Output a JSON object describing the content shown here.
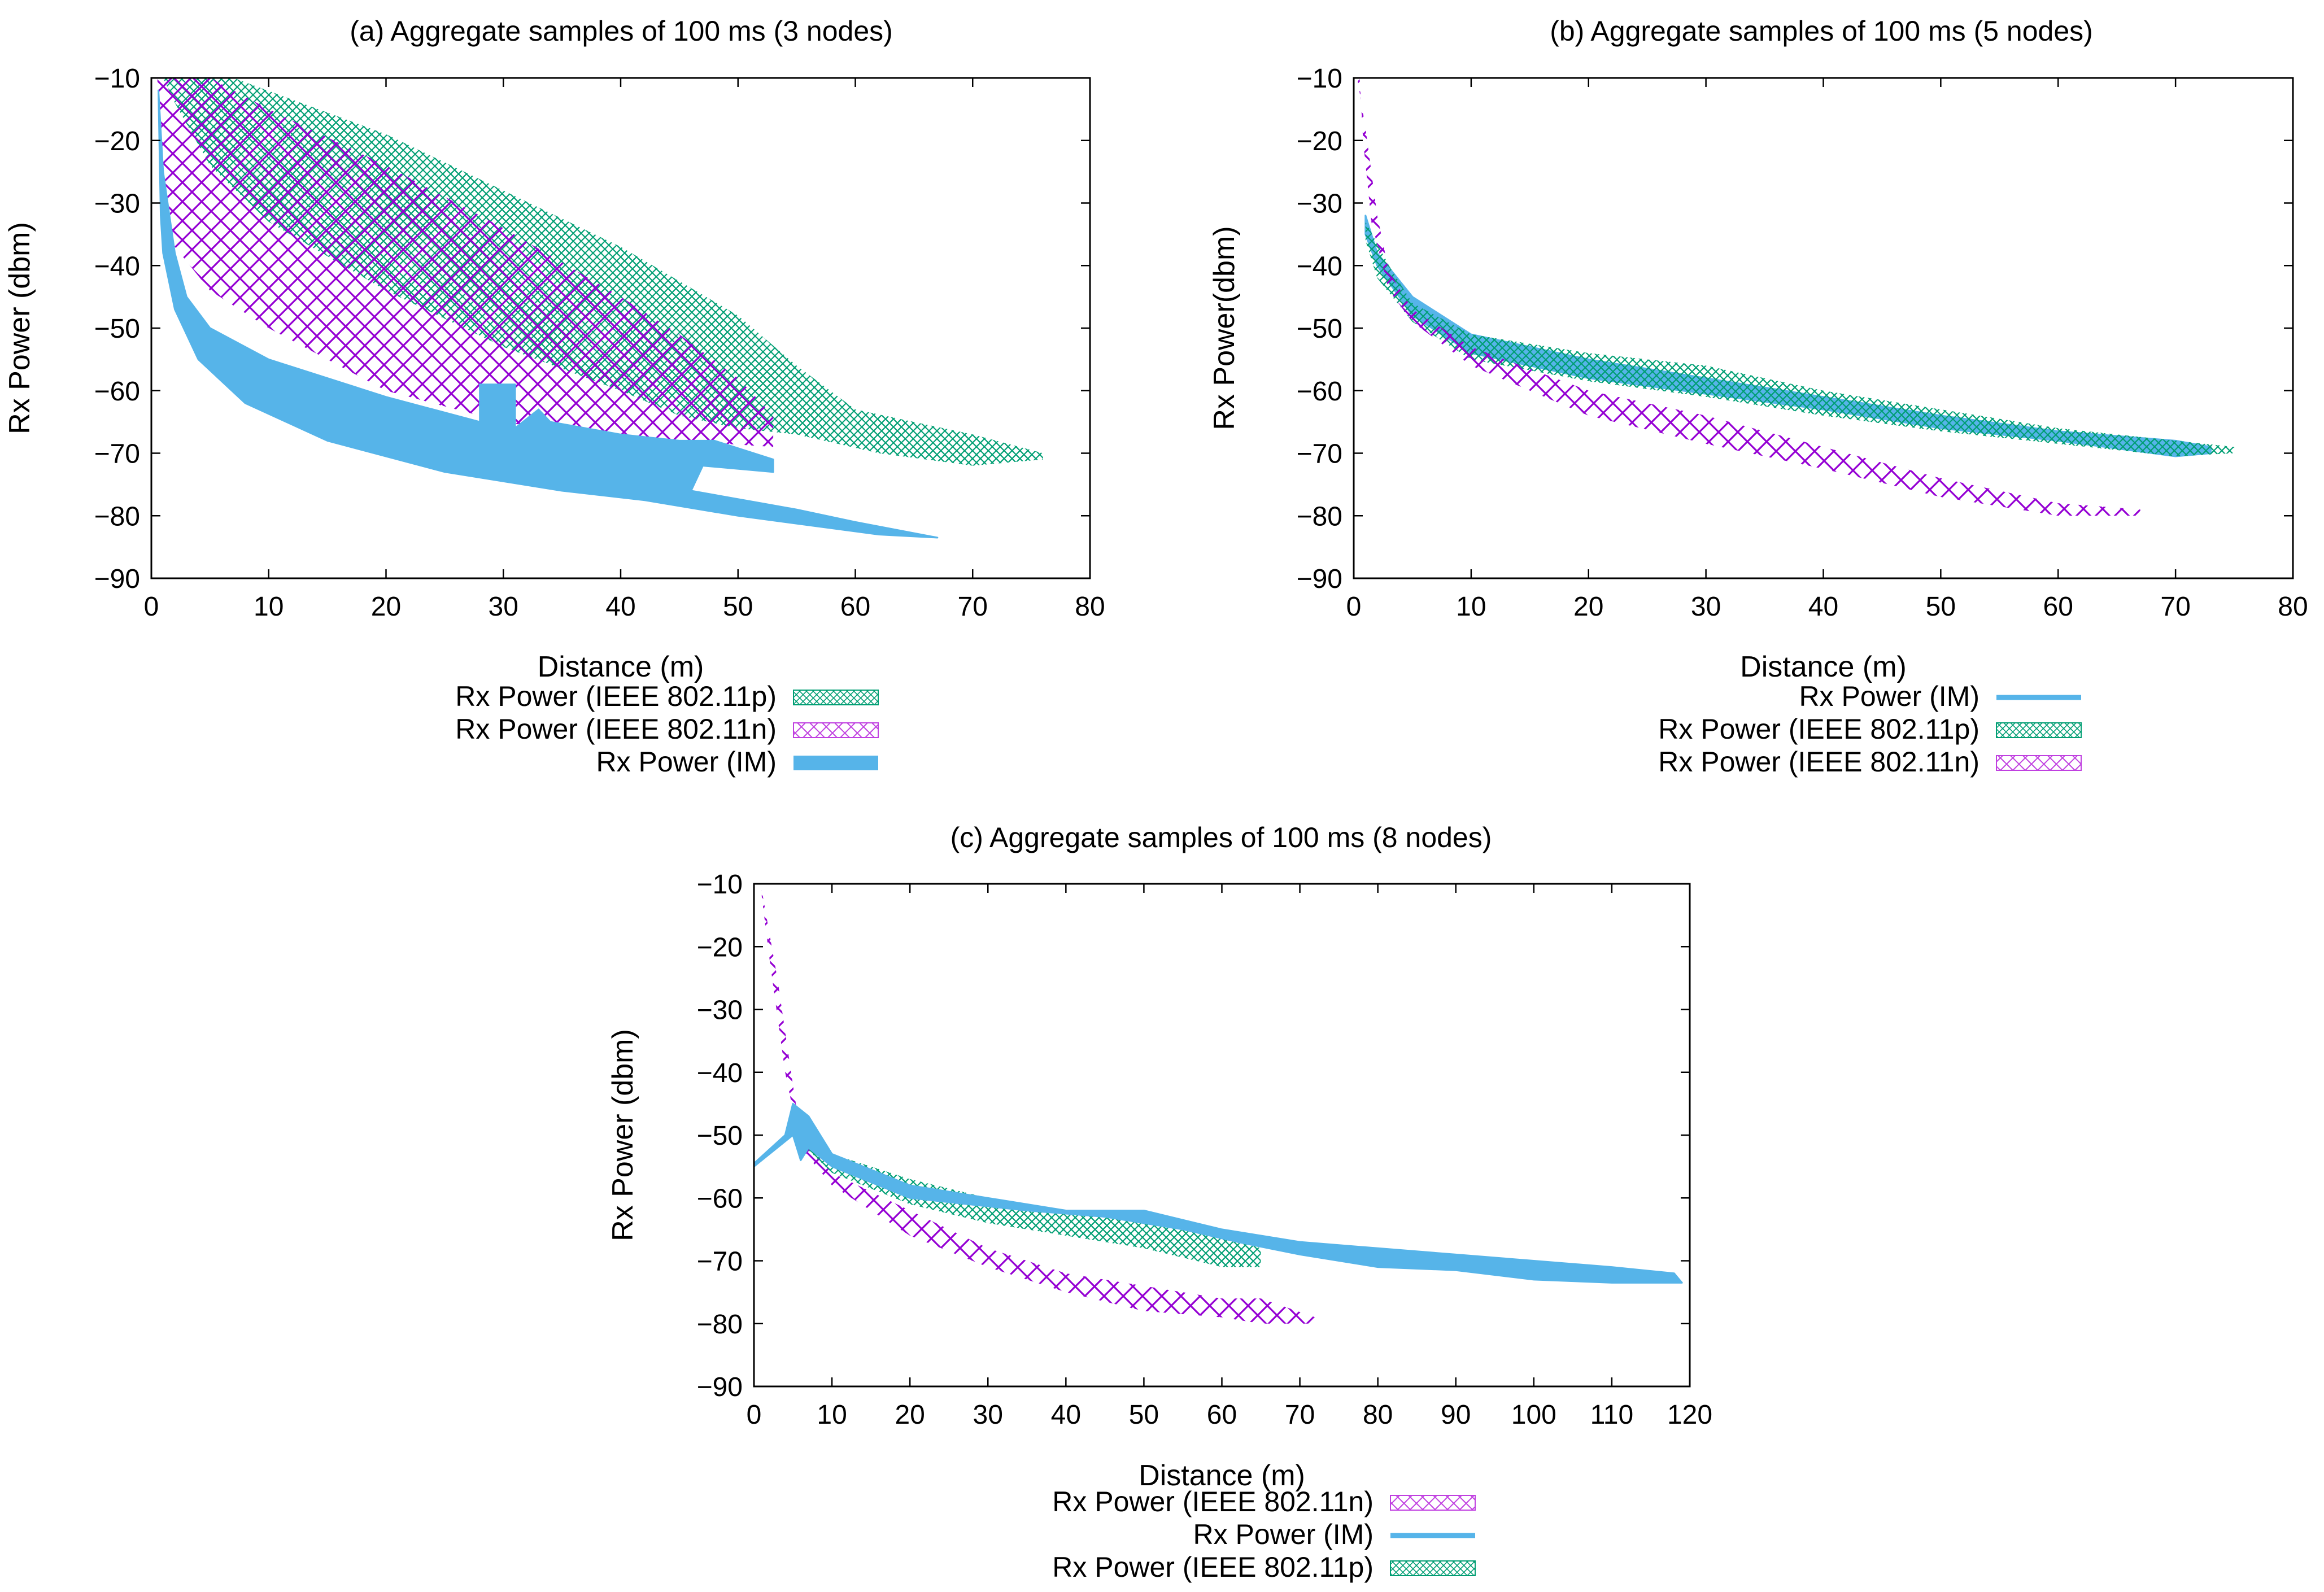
{
  "colors": {
    "ieee80211p": "#009e73",
    "ieee80211n": "#9400d3",
    "im": "#56b4e9",
    "axis": "#000000"
  },
  "chart_data": [
    {
      "id": "a",
      "type": "area",
      "title": "(a) Aggregate samples of 100 ms (3 nodes)",
      "xlabel": "Distance (m)",
      "ylabel": "Rx Power (dbm)",
      "xlim": [
        0,
        80
      ],
      "ylim": [
        -90,
        -10
      ],
      "xticks": [
        0,
        10,
        20,
        30,
        40,
        50,
        60,
        70,
        80
      ],
      "yticks": [
        -90,
        -80,
        -70,
        -60,
        -50,
        -40,
        -30,
        -20,
        -10
      ],
      "legend": [
        "Rx Power (IEEE 802.11p)",
        "Rx Power (IEEE 802.11n)",
        "Rx Power (IM)"
      ],
      "series": [
        {
          "name": "Rx Power (IEEE 802.11p)",
          "key": "ieee80211p",
          "style": "hatch",
          "upper": [
            [
              7,
              -10
            ],
            [
              20,
              -19
            ],
            [
              30,
              -28
            ],
            [
              40,
              -37
            ],
            [
              50,
              -48
            ],
            [
              55,
              -56
            ],
            [
              60,
              -63
            ],
            [
              70,
              -67
            ],
            [
              76,
              -70
            ]
          ],
          "lower": [
            [
              76,
              -71
            ],
            [
              70,
              -72
            ],
            [
              62,
              -70
            ],
            [
              55,
              -67
            ],
            [
              50,
              -66
            ],
            [
              45,
              -64
            ],
            [
              40,
              -60
            ],
            [
              30,
              -53
            ],
            [
              20,
              -44
            ],
            [
              10,
              -33
            ],
            [
              5,
              -24
            ],
            [
              2,
              -14
            ],
            [
              1,
              -10
            ]
          ]
        },
        {
          "name": "Rx Power (IEEE 802.11n)",
          "key": "ieee80211n",
          "style": "hatch",
          "upper": [
            [
              0.5,
              -10
            ],
            [
              5,
              -10
            ],
            [
              10,
              -15
            ],
            [
              20,
              -24
            ],
            [
              30,
              -34
            ],
            [
              40,
              -45
            ],
            [
              45,
              -51
            ],
            [
              50,
              -58
            ],
            [
              53,
              -64
            ],
            [
              53,
              -68
            ]
          ],
          "lower": [
            [
              53,
              -69
            ],
            [
              45,
              -68
            ],
            [
              40,
              -68
            ],
            [
              30,
              -65
            ],
            [
              20,
              -60
            ],
            [
              10,
              -50
            ],
            [
              5,
              -44
            ],
            [
              2,
              -37
            ],
            [
              1,
              -25
            ]
          ]
        },
        {
          "name": "Rx Power (IM)",
          "key": "im",
          "style": "solid",
          "upper": [
            [
              0.6,
              -12
            ],
            [
              1,
              -25
            ],
            [
              2,
              -38
            ],
            [
              3,
              -45
            ],
            [
              5,
              -50
            ],
            [
              10,
              -55
            ],
            [
              20,
              -61
            ],
            [
              28,
              -65
            ],
            [
              28,
              -59
            ],
            [
              31,
              -59
            ],
            [
              31,
              -66
            ],
            [
              33,
              -63
            ],
            [
              34,
              -65
            ],
            [
              40,
              -67
            ],
            [
              45,
              -68
            ],
            [
              48,
              -68
            ],
            [
              53,
              -71
            ]
          ],
          "lower": [
            [
              53,
              -73
            ],
            [
              47,
              -72
            ],
            [
              46,
              -76
            ],
            [
              55,
              -79
            ],
            [
              60,
              -81
            ],
            [
              67,
              -83.5
            ],
            [
              62,
              -83
            ],
            [
              50,
              -80
            ],
            [
              42,
              -77.5
            ],
            [
              35,
              -76
            ],
            [
              25,
              -73
            ],
            [
              15,
              -68
            ],
            [
              8,
              -62
            ],
            [
              4,
              -55
            ],
            [
              2,
              -47
            ],
            [
              1,
              -38
            ],
            [
              0.8,
              -32
            ]
          ]
        }
      ]
    },
    {
      "id": "b",
      "type": "area",
      "title": "(b) Aggregate samples of 100 ms (5 nodes)",
      "xlabel": "Distance (m)",
      "ylabel": "Rx Power(dbm)",
      "xlim": [
        0,
        80
      ],
      "ylim": [
        -90,
        -10
      ],
      "xticks": [
        0,
        10,
        20,
        30,
        40,
        50,
        60,
        70,
        80
      ],
      "yticks": [
        -90,
        -80,
        -70,
        -60,
        -50,
        -40,
        -30,
        -20,
        -10
      ],
      "legend": [
        "Rx Power (IM)",
        "Rx Power (IEEE 802.11p)",
        "Rx Power (IEEE 802.11n)"
      ],
      "series": [
        {
          "name": "Rx Power (IM)",
          "key": "im",
          "style": "solid",
          "upper": [
            [
              1,
              -32
            ],
            [
              2,
              -38
            ],
            [
              5,
              -45
            ],
            [
              10,
              -51
            ],
            [
              20,
              -55
            ],
            [
              30,
              -58
            ],
            [
              40,
              -61
            ],
            [
              50,
              -64
            ],
            [
              60,
              -66.5
            ],
            [
              70,
              -68
            ],
            [
              73,
              -69
            ]
          ],
          "lower": [
            [
              73,
              -70
            ],
            [
              70,
              -70.5
            ],
            [
              60,
              -68
            ],
            [
              50,
              -66
            ],
            [
              40,
              -63
            ],
            [
              30,
              -60.5
            ],
            [
              20,
              -58
            ],
            [
              10,
              -54
            ],
            [
              5,
              -48
            ],
            [
              2,
              -40
            ],
            [
              1,
              -35
            ]
          ]
        },
        {
          "name": "Rx Power (IEEE 802.11p)",
          "key": "ieee80211p",
          "style": "hatch",
          "upper": [
            [
              1,
              -33
            ],
            [
              3,
              -40
            ],
            [
              5,
              -46
            ],
            [
              10,
              -51
            ],
            [
              20,
              -54
            ],
            [
              30,
              -56
            ],
            [
              40,
              -60
            ],
            [
              50,
              -63
            ],
            [
              60,
              -66
            ],
            [
              70,
              -68
            ],
            [
              75,
              -69
            ]
          ],
          "lower": [
            [
              75,
              -70
            ],
            [
              70,
              -70.5
            ],
            [
              60,
              -68.5
            ],
            [
              50,
              -66.5
            ],
            [
              40,
              -64
            ],
            [
              30,
              -61
            ],
            [
              20,
              -58.5
            ],
            [
              10,
              -55
            ],
            [
              5,
              -49
            ],
            [
              2,
              -42
            ],
            [
              1,
              -36
            ]
          ]
        },
        {
          "name": "Rx Power (IEEE 802.11n)",
          "key": "ieee80211n",
          "style": "hatch",
          "upper": [
            [
              0.3,
              -10
            ],
            [
              1,
              -18
            ],
            [
              2,
              -32
            ],
            [
              3,
              -41
            ],
            [
              5,
              -47
            ],
            [
              10,
              -53
            ],
            [
              20,
              -60
            ],
            [
              30,
              -64
            ],
            [
              40,
              -69
            ],
            [
              50,
              -74
            ],
            [
              60,
              -78
            ],
            [
              67,
              -79
            ]
          ],
          "lower": [
            [
              67,
              -80
            ],
            [
              60,
              -80
            ],
            [
              50,
              -77
            ],
            [
              40,
              -72.5
            ],
            [
              30,
              -68.5
            ],
            [
              20,
              -64
            ],
            [
              10,
              -56
            ],
            [
              5,
              -49
            ],
            [
              3,
              -44
            ],
            [
              1.5,
              -33
            ],
            [
              0.8,
              -20
            ],
            [
              0.5,
              -10
            ]
          ]
        }
      ]
    },
    {
      "id": "c",
      "type": "area",
      "title": "(c) Aggregate samples of 100 ms (8 nodes)",
      "xlabel": "Distance (m)",
      "ylabel": "Rx Power (dbm)",
      "xlim": [
        0,
        120
      ],
      "ylim": [
        -90,
        -10
      ],
      "xticks": [
        0,
        10,
        20,
        30,
        40,
        50,
        60,
        70,
        80,
        90,
        100,
        110,
        120
      ],
      "yticks": [
        -90,
        -80,
        -70,
        -60,
        -50,
        -40,
        -30,
        -20,
        -10
      ],
      "legend": [
        "Rx Power (IEEE 802.11n)",
        "Rx Power (IM)",
        "Rx Power (IEEE 802.11p)"
      ],
      "series": [
        {
          "name": "Rx Power (IEEE 802.11n)",
          "key": "ieee80211n",
          "style": "hatch",
          "upper": [
            [
              1,
              -11
            ],
            [
              3,
              -25
            ],
            [
              5,
              -42
            ],
            [
              6,
              -50
            ],
            [
              10,
              -56
            ],
            [
              20,
              -62
            ],
            [
              30,
              -68
            ],
            [
              40,
              -72
            ],
            [
              50,
              -74
            ],
            [
              60,
              -76
            ],
            [
              65,
              -76
            ],
            [
              72,
              -79
            ]
          ],
          "lower": [
            [
              72,
              -80
            ],
            [
              65,
              -80
            ],
            [
              60,
              -79
            ],
            [
              50,
              -78
            ],
            [
              40,
              -75
            ],
            [
              30,
              -71
            ],
            [
              20,
              -66
            ],
            [
              10,
              -58
            ],
            [
              6,
              -52
            ],
            [
              4,
              -40
            ],
            [
              2,
              -22
            ],
            [
              1,
              -12
            ]
          ]
        },
        {
          "name": "Rx Power (IEEE 802.11p)",
          "key": "ieee80211p",
          "style": "hatch",
          "upper": [
            [
              5,
              -47
            ],
            [
              10,
              -53
            ],
            [
              20,
              -57
            ],
            [
              30,
              -60
            ],
            [
              40,
              -62
            ],
            [
              50,
              -64
            ],
            [
              60,
              -66
            ],
            [
              65,
              -68
            ]
          ],
          "lower": [
            [
              65,
              -71
            ],
            [
              60,
              -71
            ],
            [
              50,
              -68
            ],
            [
              40,
              -66
            ],
            [
              30,
              -64
            ],
            [
              20,
              -61
            ],
            [
              10,
              -56
            ],
            [
              5,
              -50
            ]
          ]
        },
        {
          "name": "Rx Power (IM)",
          "key": "im",
          "style": "solid",
          "upper": [
            [
              0,
              -54.5
            ],
            [
              4,
              -50
            ],
            [
              5,
              -45
            ],
            [
              7,
              -47
            ],
            [
              10,
              -53
            ],
            [
              20,
              -58
            ],
            [
              30,
              -60
            ],
            [
              40,
              -62
            ],
            [
              50,
              -62
            ],
            [
              60,
              -65
            ],
            [
              70,
              -67
            ],
            [
              80,
              -68
            ],
            [
              90,
              -69
            ],
            [
              100,
              -70
            ],
            [
              110,
              -71
            ],
            [
              118,
              -72
            ]
          ],
          "lower": [
            [
              119,
              -73.5
            ],
            [
              110,
              -73.5
            ],
            [
              100,
              -73
            ],
            [
              90,
              -71.5
            ],
            [
              80,
              -71
            ],
            [
              70,
              -69
            ],
            [
              62,
              -67
            ],
            [
              55,
              -65
            ],
            [
              45,
              -63
            ],
            [
              35,
              -62
            ],
            [
              20,
              -60
            ],
            [
              10,
              -55
            ],
            [
              7,
              -52
            ],
            [
              6,
              -54
            ],
            [
              5,
              -50
            ],
            [
              4,
              -51
            ],
            [
              0,
              -55
            ]
          ]
        }
      ]
    }
  ]
}
